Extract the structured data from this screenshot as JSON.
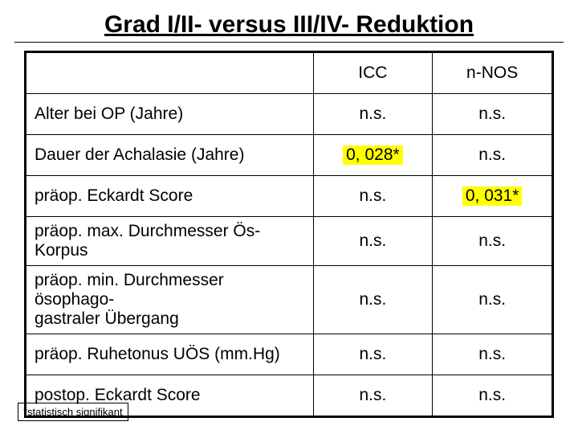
{
  "title": "Grad I/II- versus III/IV- Reduktion",
  "columns": {
    "blank": "",
    "col1": "ICC",
    "col2": "n-NOS"
  },
  "highlight_color": "#ffff00",
  "rows": [
    {
      "label": "Alter bei OP (Jahre)",
      "c1": "n.s.",
      "c1_hl": false,
      "c2": "n.s.",
      "c2_hl": false,
      "tall": false
    },
    {
      "label": "Dauer der Achalasie (Jahre)",
      "c1": "0, 028*",
      "c1_hl": true,
      "c2": "n.s.",
      "c2_hl": false,
      "tall": false
    },
    {
      "label": "präop. Eckardt Score",
      "c1": "n.s.",
      "c1_hl": false,
      "c2": "0, 031*",
      "c2_hl": true,
      "tall": false
    },
    {
      "label": "präop. max. Durchmesser Ös-Korpus",
      "c1": "n.s.",
      "c1_hl": false,
      "c2": "n.s.",
      "c2_hl": false,
      "tall": false
    },
    {
      "label": "präop. min. Durchmesser ösophago-\ngastraler Übergang",
      "c1": "n.s.",
      "c1_hl": false,
      "c2": "n.s.",
      "c2_hl": false,
      "tall": true
    },
    {
      "label": "präop. Ruhetonus UÖS (mm.Hg)",
      "c1": "n.s.",
      "c1_hl": false,
      "c2": "n.s.",
      "c2_hl": false,
      "tall": false
    },
    {
      "label": "postop. Eckardt Score",
      "c1": "n.s.",
      "c1_hl": false,
      "c2": "n.s.",
      "c2_hl": false,
      "tall": false
    }
  ],
  "footnote": "*statistisch signifikant"
}
